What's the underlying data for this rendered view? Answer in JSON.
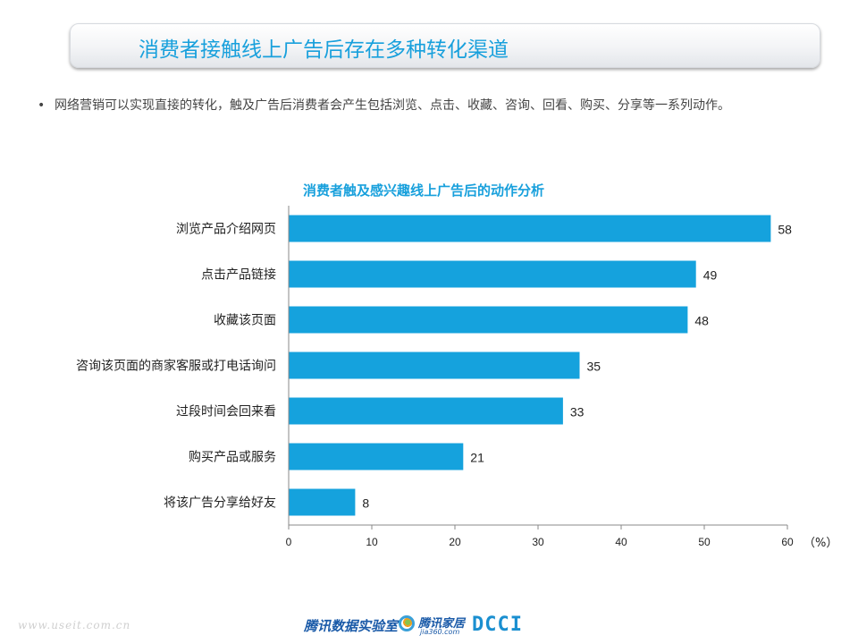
{
  "slide": {
    "title": "消费者接触线上广告后存在多种转化渠道",
    "bullet": "网络营销可以实现直接的转化，触及广告后消费者会产生包括浏览、点击、收藏、咨询、回看、购买、分享等一系列动作。"
  },
  "chart_data": {
    "type": "bar",
    "orientation": "horizontal",
    "title": "消费者触及感兴趣线上广告后的动作分析",
    "categories": [
      "浏览产品介绍网页",
      "点击产品链接",
      "收藏该页面",
      "咨询该页面的商家客服或打电话询问",
      "过段时间会回来看",
      "购买产品或服务",
      "将该广告分享给好友"
    ],
    "values": [
      58,
      49,
      48,
      35,
      33,
      21,
      8
    ],
    "xticks": [
      0,
      10,
      20,
      30,
      40,
      50,
      60
    ],
    "xlim": [
      0,
      60
    ],
    "x_unit": "（%）",
    "bar_color": "#15a2dd",
    "grid": false,
    "legend": "none"
  },
  "footer": {
    "url": "www.useit.com.cn",
    "logo1": "腾讯数据实验室",
    "logo2": "腾讯家居",
    "logo2_sub": "jia360.com",
    "logo3": "DCCI"
  },
  "colors": {
    "accent": "#18a0dc",
    "bar": "#15a2dd"
  }
}
